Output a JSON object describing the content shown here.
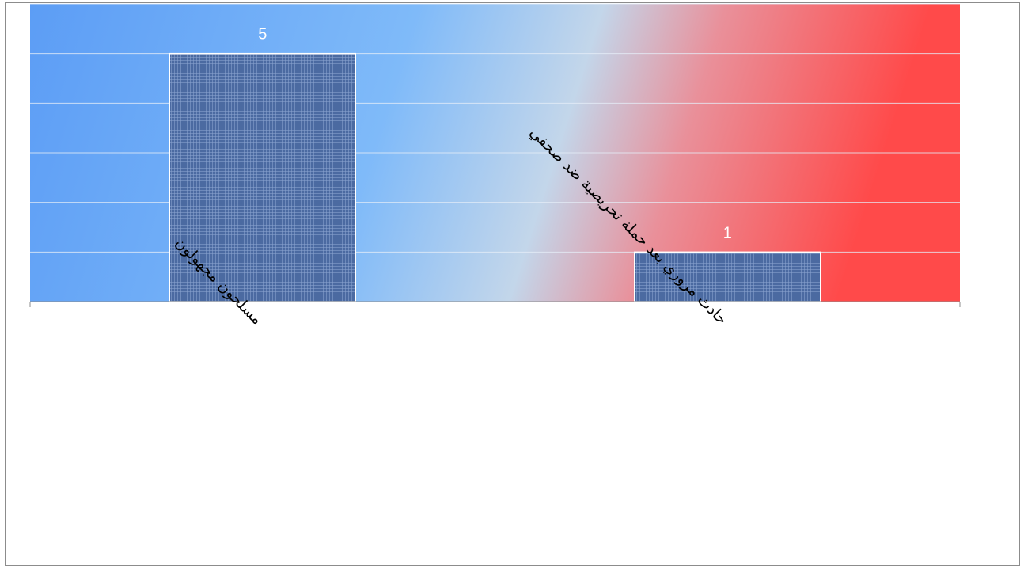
{
  "chart_data": {
    "type": "bar",
    "categories": [
      "مسلحون مجهولون",
      "حادث مروري بعد حملة تحريضية ضد صحفي"
    ],
    "values": [
      5,
      1
    ],
    "data_labels": [
      "5",
      "1"
    ],
    "ylim": [
      0,
      6
    ],
    "grid": true,
    "title": "",
    "xlabel": "",
    "ylabel": ""
  },
  "colors": {
    "bar_fill": "#4b6aa1",
    "bar_border": "#ffffff",
    "gradient_blue": "#5c9df5",
    "gradient_light": "#c3d6ea",
    "gradient_red": "#ff4a4a",
    "gridline": "#e6eef8",
    "axis": "#8c8c8c"
  }
}
